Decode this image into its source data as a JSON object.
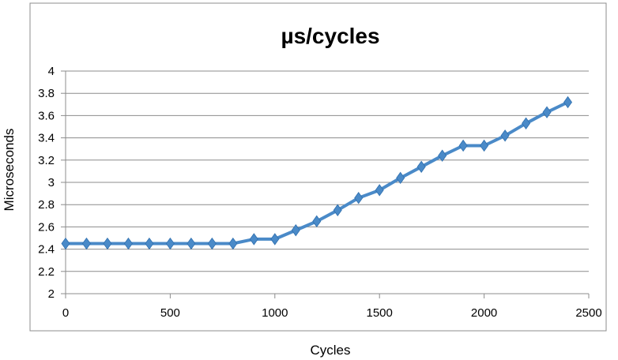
{
  "chart_data": {
    "type": "line",
    "title": "µs/cycles",
    "xlabel": "Cycles",
    "ylabel": "Microseconds",
    "xlim": [
      0,
      2500
    ],
    "ylim": [
      2,
      4
    ],
    "x_ticks": [
      "0",
      "500",
      "1000",
      "1500",
      "2000",
      "2500"
    ],
    "y_ticks": [
      "2",
      "2.2",
      "2.4",
      "2.6",
      "2.8",
      "3",
      "3.2",
      "3.4",
      "3.6",
      "3.8",
      "4"
    ],
    "grid": "horizontal",
    "legend": "none",
    "series": [
      {
        "color": "#4a8ac8",
        "marker": "diamond",
        "x": [
          0,
          100,
          200,
          300,
          400,
          500,
          600,
          700,
          800,
          900,
          1000,
          1100,
          1200,
          1300,
          1400,
          1500,
          1600,
          1700,
          1800,
          1900,
          2000,
          2100,
          2200,
          2300,
          2400
        ],
        "y": [
          2.45,
          2.45,
          2.45,
          2.45,
          2.45,
          2.45,
          2.45,
          2.45,
          2.45,
          2.49,
          2.49,
          2.57,
          2.65,
          2.75,
          2.86,
          2.93,
          3.04,
          3.14,
          3.24,
          3.33,
          3.33,
          3.42,
          3.53,
          3.63,
          3.72
        ]
      }
    ]
  }
}
